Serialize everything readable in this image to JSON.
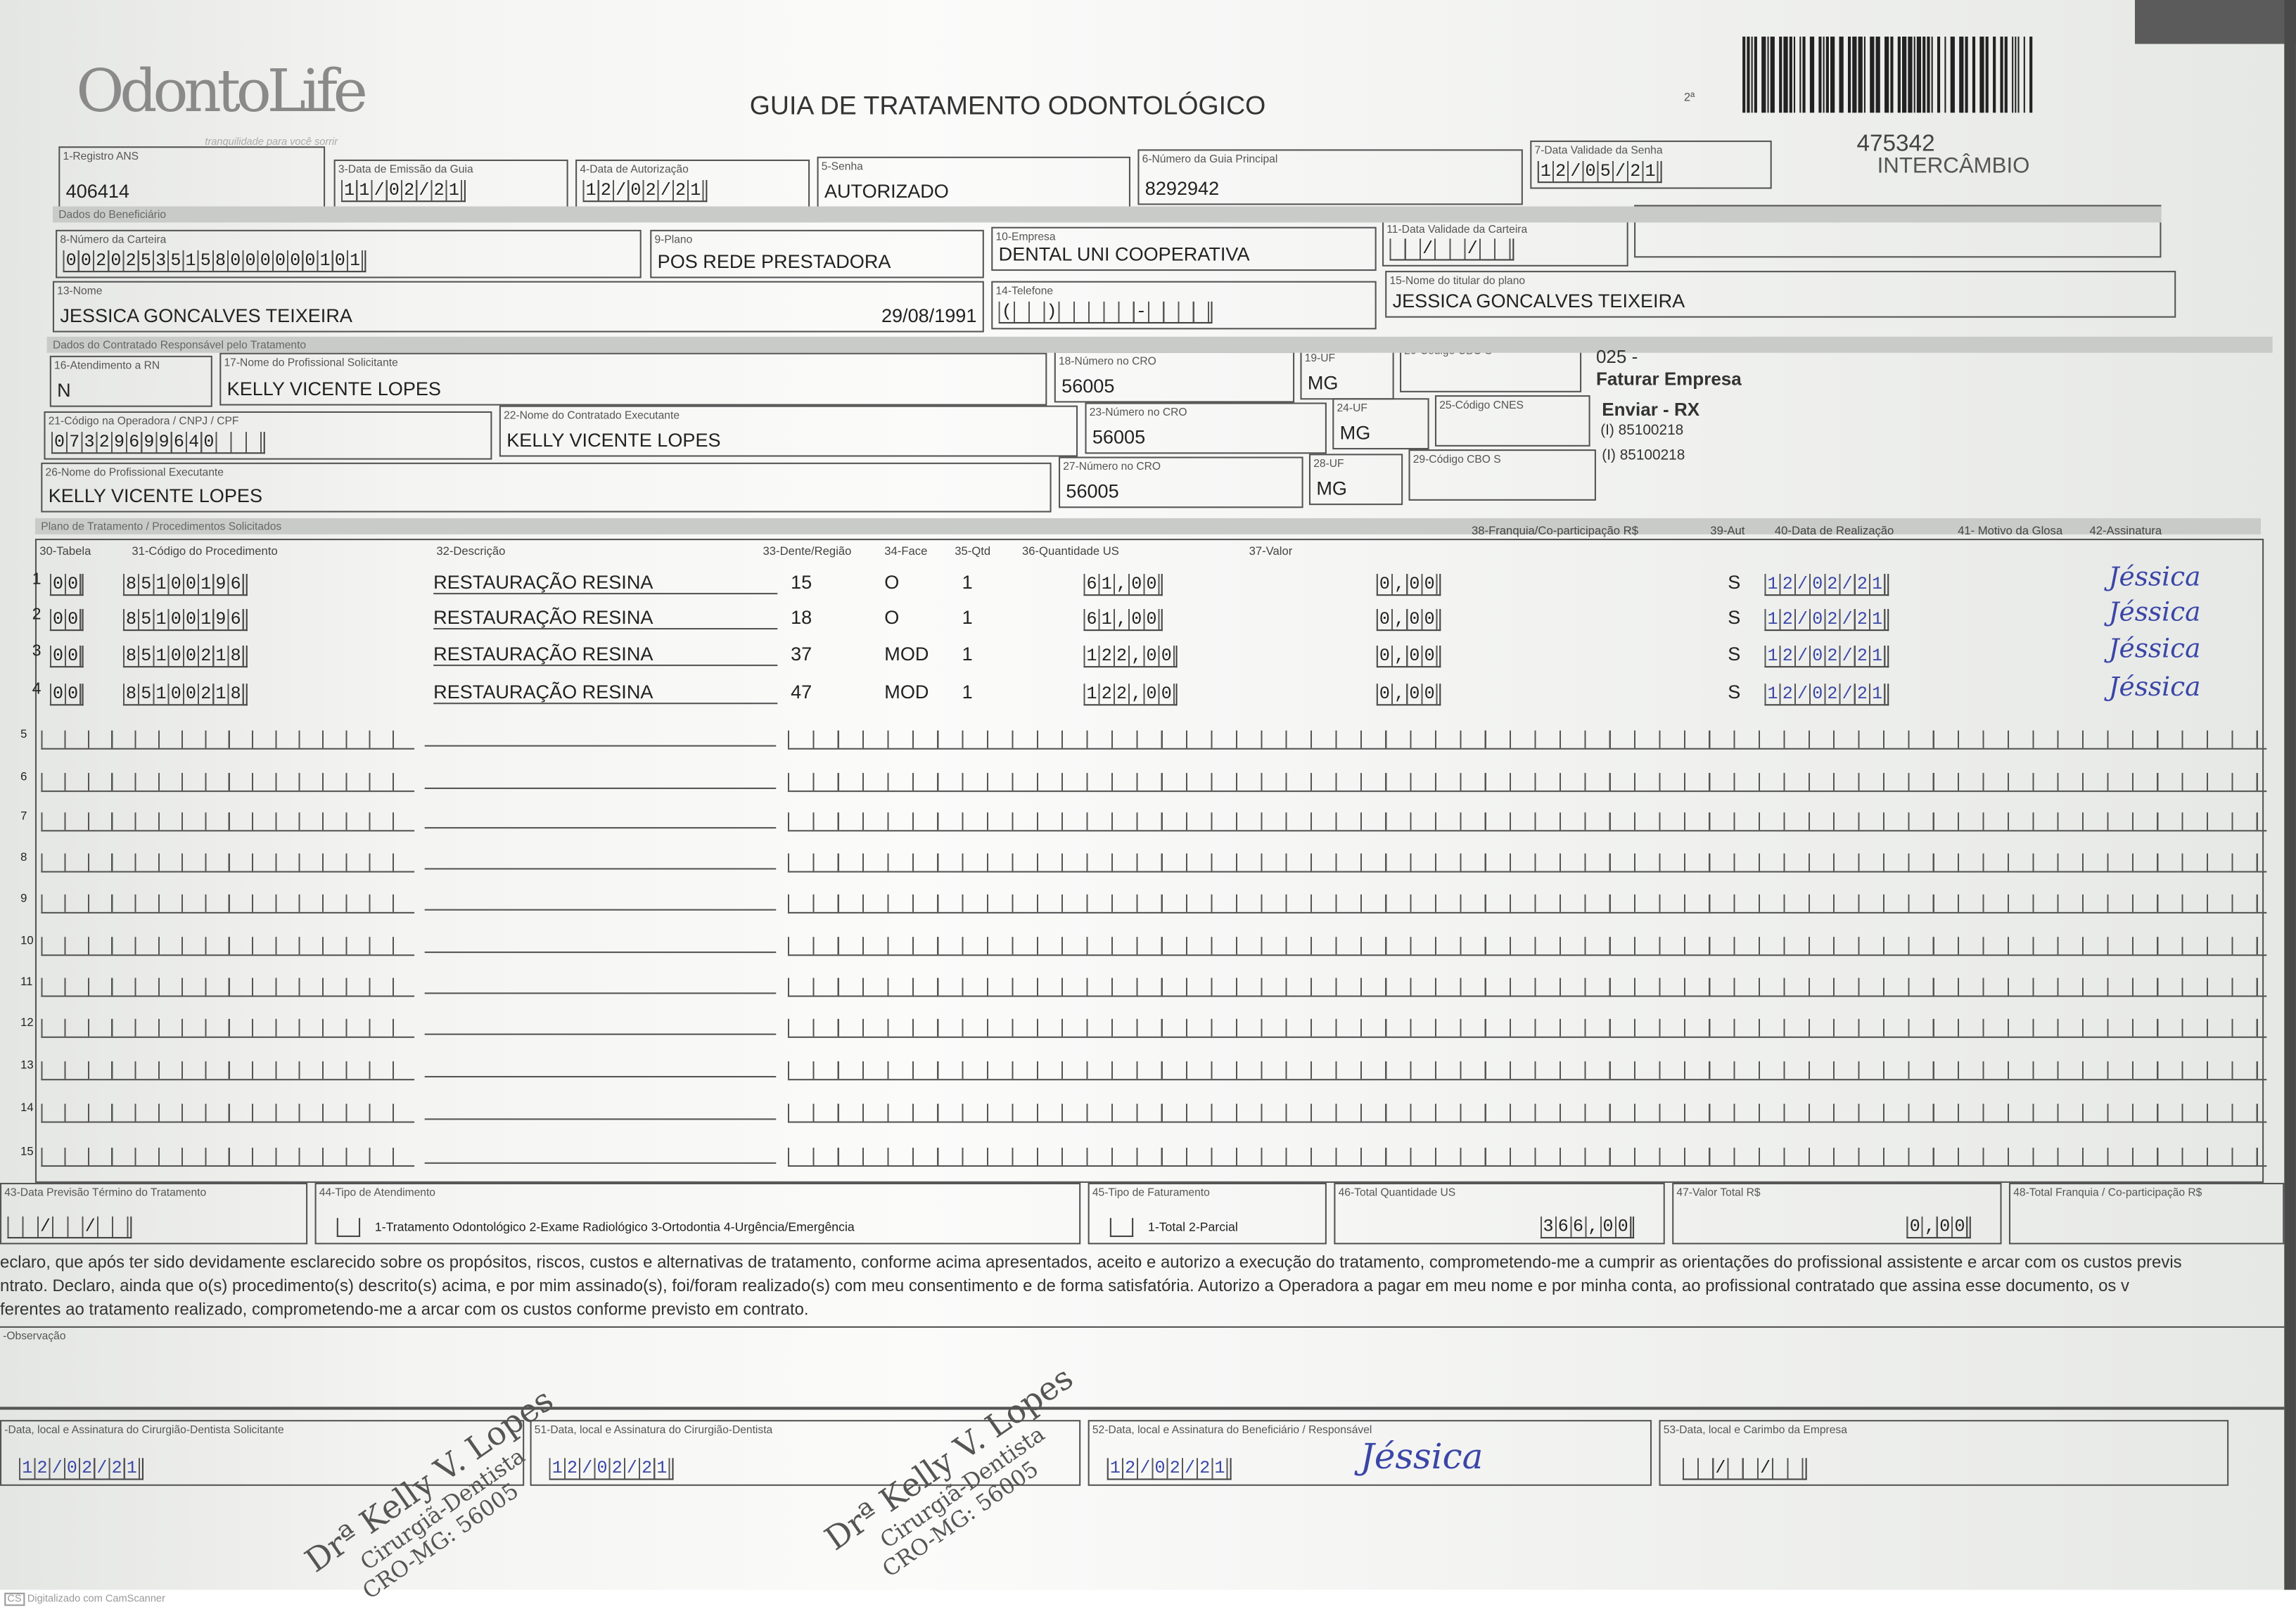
{
  "header": {
    "logo": "OdontoLife",
    "tagline": "tranquilidade para você sorrir",
    "title": "GUIA DE TRATAMENTO ODONTOLÓGICO",
    "via": "2ª",
    "guia_numero": "475342",
    "tipo": "INTERCÂMBIO"
  },
  "fields": {
    "f1": {
      "label": "1-Registro ANS",
      "value": "406414"
    },
    "f3": {
      "label": "3-Data de Emissão da Guia",
      "value": "11/02/21"
    },
    "f4": {
      "label": "4-Data de Autorização",
      "value": "12/02/21"
    },
    "f5": {
      "label": "5-Senha",
      "value": "AUTORIZADO"
    },
    "f6": {
      "label": "6-Número da Guia Principal",
      "value": "8292942"
    },
    "f7": {
      "label": "7-Data Validade da Senha",
      "value": "12/05/21"
    },
    "f8": {
      "label": "8-Número da Carteira",
      "value": "00202535158000000101"
    },
    "f9": {
      "label": "9-Plano",
      "value": "POS REDE PRESTADORA"
    },
    "f10": {
      "label": "10-Empresa",
      "value": "DENTAL UNI  COOPERATIVA"
    },
    "f11": {
      "label": "11-Data Validade da Carteira",
      "value": "  /  /  "
    },
    "f12": {
      "label": "12-Número do Cartão Nacional de Saúde",
      "value": ""
    },
    "f13": {
      "label": "13-Nome",
      "value": "JESSICA GONCALVES TEIXEIRA",
      "birth": "29/08/1991"
    },
    "f14": {
      "label": "14-Telefone",
      "value": "(  )     -    "
    },
    "f15": {
      "label": "15-Nome do titular do plano",
      "value": "JESSICA GONCALVES TEIXEIRA"
    },
    "f16": {
      "label": "16-Atendimento a RN",
      "value": "N"
    },
    "f17": {
      "label": "17-Nome do Profissional Solicitante",
      "value": "KELLY VICENTE LOPES"
    },
    "f18": {
      "label": "18-Número no CRO",
      "value": "56005"
    },
    "f19": {
      "label": "19-UF",
      "value": "MG"
    },
    "f20": {
      "label": "20-Código CBO S",
      "value": ""
    },
    "f21": {
      "label": "21-Código na Operadora / CNPJ / CPF",
      "value": "07329699640   "
    },
    "f22": {
      "label": "22-Nome do Contratado Executante",
      "value": "KELLY VICENTE LOPES"
    },
    "f23": {
      "label": "23-Número no CRO",
      "value": "56005"
    },
    "f24": {
      "label": "24-UF",
      "value": "MG"
    },
    "f25": {
      "label": "25-Código CNES",
      "value": ""
    },
    "f26": {
      "label": "26-Nome do Profissional Executante",
      "value": "KELLY VICENTE LOPES"
    },
    "f27": {
      "label": "27-Número no CRO",
      "value": "56005"
    },
    "f28": {
      "label": "28-UF",
      "value": "MG"
    },
    "f29": {
      "label": "29-Código CBO S",
      "value": ""
    }
  },
  "side_notes": {
    "l1": "025 -",
    "l2": "Faturar Empresa",
    "l3": "Enviar - RX",
    "l4": "(I) 85100218",
    "l5": "(I) 85100218"
  },
  "sections": {
    "beneficiario": "Dados do Beneficiário",
    "contratado": "Dados do Contratado Responsável pelo Tratamento",
    "plano": "Plano de Tratamento / Procedimentos Solicitados"
  },
  "table": {
    "headers": {
      "tabela": "30-Tabela",
      "codigo": "31-Código do Procedimento",
      "descricao": "32-Descrição",
      "dente": "33-Dente/Região",
      "face": "34-Face",
      "qtd": "35-Qtd",
      "qtd_us": "36-Quantidade US",
      "valor": "37-Valor",
      "franquia": "38-Franquia/Co-participação R$",
      "aut": "39-Aut",
      "data": "40-Data de Realização",
      "glosa": "41- Motivo da Glosa",
      "assinatura": "42-Assinatura"
    },
    "rows": [
      {
        "n": "1",
        "tabela": "00",
        "codigo": "85100196",
        "descricao": "RESTAURAÇÃO RESINA",
        "dente": "15",
        "face": "O",
        "qtd": "1",
        "qtd_us": "61,00",
        "valor": "0,00",
        "aut": "S",
        "data": "12/02/21",
        "assinatura": "Jéssica"
      },
      {
        "n": "2",
        "tabela": "00",
        "codigo": "85100196",
        "descricao": "RESTAURAÇÃO RESINA",
        "dente": "18",
        "face": "O",
        "qtd": "1",
        "qtd_us": "61,00",
        "valor": "0,00",
        "aut": "S",
        "data": "12/02/21",
        "assinatura": "Jéssica"
      },
      {
        "n": "3",
        "tabela": "00",
        "codigo": "85100218",
        "descricao": "RESTAURAÇÃO RESINA",
        "dente": "37",
        "face": "MOD",
        "qtd": "1",
        "qtd_us": "122,00",
        "valor": "0,00",
        "aut": "S",
        "data": "12/02/21",
        "assinatura": "Jéssica"
      },
      {
        "n": "4",
        "tabela": "00",
        "codigo": "85100218",
        "descricao": "RESTAURAÇÃO RESINA",
        "dente": "47",
        "face": "MOD",
        "qtd": "1",
        "qtd_us": "122,00",
        "valor": "0,00",
        "aut": "S",
        "data": "12/02/21",
        "assinatura": "Jéssica"
      }
    ],
    "empty_rows": [
      "5",
      "6",
      "7",
      "8",
      "9",
      "10",
      "11",
      "12",
      "13",
      "14",
      "15"
    ]
  },
  "totals": {
    "f43": {
      "label": "43-Data Previsão Término do Tratamento",
      "value": "  /  /  "
    },
    "f44": {
      "label": "44-Tipo de Atendimento",
      "value": "1-Tratamento Odontológico  2-Exame Radiológico  3-Ortodontia  4-Urgência/Emergência"
    },
    "f45": {
      "label": "45-Tipo de Faturamento",
      "value": "1-Total  2-Parcial"
    },
    "f46": {
      "label": "46-Total Quantidade US",
      "value": "366,00"
    },
    "f47": {
      "label": "47-Valor Total R$",
      "value": "0,00"
    },
    "f48": {
      "label": "48-Total Franquia / Co-participação R$",
      "value": ""
    }
  },
  "declaration": [
    "eclaro, que após ter sido devidamente esclarecido sobre os propósitos, riscos, custos e alternativas de tratamento, conforme acima apresentados, aceito e autorizo a execução do tratamento, comprometendo-me a cumprir as orientações do profissional assistente e arcar com os custos previs",
    "ntrato. Declaro, ainda que o(s) procedimento(s) descrito(s) acima, e por mim assinado(s), foi/foram realizado(s) com meu consentimento e de forma satisfatória. Autorizo a Operadora a pagar em meu nome e por minha conta, ao profissional contratado que assina esse documento, os v",
    "ferentes ao tratamento realizado, comprometendo-me a arcar com os custos conforme previsto em contrato."
  ],
  "observacao": {
    "label": "-Observação"
  },
  "signatures": {
    "f50": {
      "label": "-Data, local e Assinatura do Cirurgião-Dentista Solicitante",
      "value": "12/02/21"
    },
    "f51": {
      "label": "51-Data, local e Assinatura do Cirurgião-Dentista",
      "value": "12/02/21"
    },
    "f52": {
      "label": "52-Data, local e Assinatura do Beneficiário / Responsável",
      "value": "12/02/21",
      "sig": "Jéssica"
    },
    "f53": {
      "label": "53-Data, local e Carimbo da Empresa",
      "value": "  /  /  "
    }
  },
  "stamp": {
    "name": "Drª Kelly V. Lopes",
    "role": "Cirurgiã-Dentista",
    "cro": "CRO-MG: 56005"
  },
  "footer": {
    "cs": "CS",
    "text": "Digitalizado com CamScanner"
  },
  "colors": {
    "ink": "#3a46a6",
    "paper": "#f6f6f4",
    "lines": "#555555"
  }
}
